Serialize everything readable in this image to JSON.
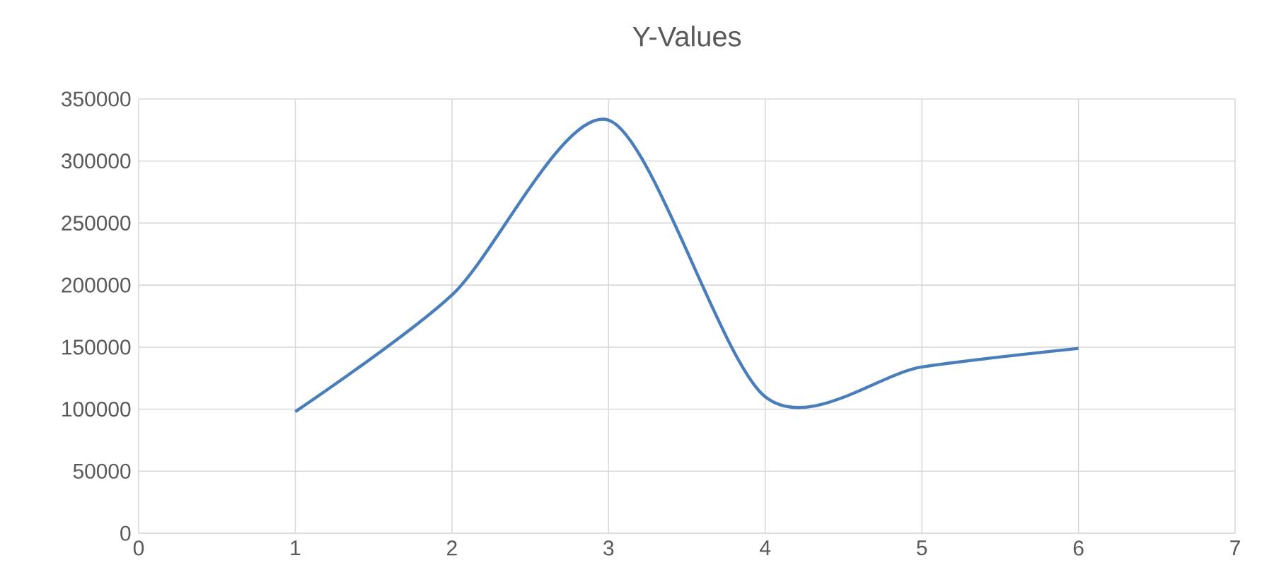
{
  "chart_data": {
    "type": "line",
    "title": "Y-Values",
    "x": [
      1,
      2,
      3,
      4,
      5,
      6
    ],
    "series": [
      {
        "color": "#4a7ebb",
        "values": [
          98000,
          192000,
          333000,
          110000,
          134000,
          149000
        ]
      }
    ],
    "xlim": [
      0,
      7
    ],
    "xticks": [
      0,
      1,
      2,
      3,
      4,
      5,
      6,
      7
    ],
    "ylim": [
      0,
      350000
    ],
    "yticks": [
      0,
      50000,
      100000,
      150000,
      200000,
      250000,
      300000,
      350000
    ],
    "grid": true,
    "marker": "none",
    "line_style": "solid"
  }
}
